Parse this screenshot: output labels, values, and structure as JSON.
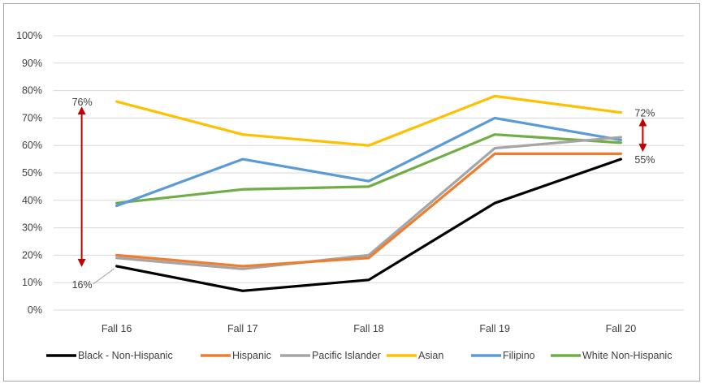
{
  "chart_data": {
    "type": "line",
    "categories": [
      "Fall 16",
      "Fall 17",
      "Fall 18",
      "Fall 19",
      "Fall 20"
    ],
    "ylim": [
      0,
      100
    ],
    "yticks": [
      "0%",
      "10%",
      "20%",
      "30%",
      "40%",
      "50%",
      "60%",
      "70%",
      "80%",
      "90%",
      "100%"
    ],
    "grid": true,
    "legend_position": "bottom",
    "series": [
      {
        "name": "Black - Non-Hispanic",
        "color": "#000000",
        "values": [
          16,
          7,
          11,
          39,
          55
        ]
      },
      {
        "name": "Hispanic",
        "color": "#ed7d31",
        "values": [
          20,
          16,
          19,
          57,
          57
        ]
      },
      {
        "name": "Pacific Islander",
        "color": "#a5a5a5",
        "values": [
          19,
          15,
          20,
          59,
          63
        ]
      },
      {
        "name": "Asian",
        "color": "#ffc000",
        "values": [
          76,
          64,
          60,
          78,
          72
        ]
      },
      {
        "name": "Filipino",
        "color": "#5b9bd5",
        "values": [
          38,
          55,
          47,
          70,
          62
        ]
      },
      {
        "name": "White Non-Hispanic",
        "color": "#70ad47",
        "values": [
          39,
          44,
          45,
          64,
          61
        ]
      }
    ],
    "annotations": [
      {
        "label": "76%",
        "series": "Asian",
        "category": "Fall 16"
      },
      {
        "label": "16%",
        "series": "Black - Non-Hispanic",
        "category": "Fall 16"
      },
      {
        "label": "72%",
        "series": "Asian",
        "category": "Fall 20"
      },
      {
        "label": "55%",
        "series": "Black - Non-Hispanic",
        "category": "Fall 20"
      }
    ],
    "gap_arrow_color": "#c00000"
  }
}
